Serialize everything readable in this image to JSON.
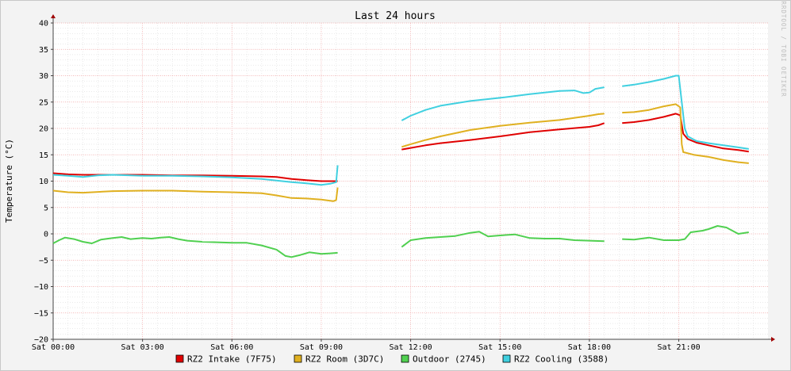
{
  "chart_data": {
    "type": "line",
    "title": "Last 24 hours",
    "ylabel": "Temperature (°C)",
    "watermark": "RRDTOOL / TOBI OETIKER",
    "ylim": [
      -20,
      40
    ],
    "y_ticks": [
      -20,
      -15,
      -10,
      -5,
      0,
      5,
      10,
      15,
      20,
      25,
      30,
      35,
      40
    ],
    "y_tick_labels": [
      "−20",
      "−15",
      "−10",
      "−5",
      "0",
      "5",
      "10",
      "15",
      "20",
      "25",
      "30",
      "35",
      "40"
    ],
    "xlim": [
      0,
      23.5
    ],
    "x_ticks": [
      0,
      3,
      6,
      9,
      12,
      15,
      18,
      21
    ],
    "x_tick_labels": [
      "Sat 00:00",
      "Sat 03:00",
      "Sat 06:00",
      "Sat 09:00",
      "Sat 12:00",
      "Sat 15:00",
      "Sat 18:00",
      "Sat 21:00"
    ],
    "grid": true,
    "legend_position": "bottom",
    "series": [
      {
        "name": "RZ2 Intake (7F75)",
        "color": "#e00000",
        "segments": [
          [
            [
              0,
              11.5
            ],
            [
              0.5,
              11.3
            ],
            [
              1,
              11.2
            ],
            [
              2,
              11.2
            ],
            [
              3,
              11.2
            ],
            [
              4,
              11.1
            ],
            [
              5,
              11.1
            ],
            [
              6,
              11
            ],
            [
              7,
              10.9
            ],
            [
              7.5,
              10.8
            ],
            [
              8,
              10.4
            ],
            [
              8.5,
              10.2
            ],
            [
              9,
              10
            ],
            [
              9.5,
              10
            ],
            [
              9.55,
              10
            ]
          ],
          [
            [
              11.7,
              16
            ],
            [
              12,
              16.3
            ],
            [
              12.5,
              16.8
            ],
            [
              13,
              17.2
            ],
            [
              14,
              17.8
            ],
            [
              15,
              18.5
            ],
            [
              16,
              19.3
            ],
            [
              17,
              19.8
            ],
            [
              18,
              20.3
            ],
            [
              18.3,
              20.6
            ],
            [
              18.5,
              21
            ]
          ],
          [
            [
              19.1,
              21
            ],
            [
              19.5,
              21.2
            ],
            [
              20,
              21.6
            ],
            [
              20.5,
              22.2
            ],
            [
              20.9,
              22.8
            ],
            [
              21.05,
              22.5
            ],
            [
              21.15,
              19
            ],
            [
              21.3,
              18
            ],
            [
              21.6,
              17.3
            ],
            [
              22,
              16.8
            ],
            [
              22.5,
              16.2
            ],
            [
              23,
              15.9
            ],
            [
              23.35,
              15.6
            ]
          ]
        ]
      },
      {
        "name": "RZ2 Room (3D7C)",
        "color": "#e0b020",
        "segments": [
          [
            [
              0,
              8.2
            ],
            [
              0.5,
              7.9
            ],
            [
              1,
              7.8
            ],
            [
              2,
              8.1
            ],
            [
              3,
              8.2
            ],
            [
              4,
              8.2
            ],
            [
              5,
              8
            ],
            [
              6,
              7.9
            ],
            [
              7,
              7.7
            ],
            [
              7.5,
              7.3
            ],
            [
              8,
              6.8
            ],
            [
              8.5,
              6.7
            ],
            [
              9,
              6.5
            ],
            [
              9.4,
              6.2
            ],
            [
              9.5,
              6.4
            ],
            [
              9.55,
              8.8
            ]
          ],
          [
            [
              11.7,
              16.5
            ],
            [
              12,
              17
            ],
            [
              12.5,
              17.8
            ],
            [
              13,
              18.5
            ],
            [
              14,
              19.7
            ],
            [
              15,
              20.5
            ],
            [
              16,
              21.1
            ],
            [
              17,
              21.6
            ],
            [
              18,
              22.4
            ],
            [
              18.3,
              22.7
            ],
            [
              18.5,
              22.8
            ]
          ],
          [
            [
              19.1,
              23
            ],
            [
              19.5,
              23.1
            ],
            [
              20,
              23.5
            ],
            [
              20.5,
              24.2
            ],
            [
              20.9,
              24.6
            ],
            [
              21.05,
              24
            ],
            [
              21.1,
              17
            ],
            [
              21.15,
              15.5
            ],
            [
              21.5,
              15
            ],
            [
              22,
              14.6
            ],
            [
              22.5,
              14
            ],
            [
              23,
              13.6
            ],
            [
              23.35,
              13.4
            ]
          ]
        ]
      },
      {
        "name": "Outdoor (2745)",
        "color": "#50d050",
        "segments": [
          [
            [
              0,
              -1.8
            ],
            [
              0.2,
              -1.2
            ],
            [
              0.4,
              -0.7
            ],
            [
              0.7,
              -1
            ],
            [
              1,
              -1.5
            ],
            [
              1.3,
              -1.8
            ],
            [
              1.6,
              -1.1
            ],
            [
              2,
              -0.8
            ],
            [
              2.3,
              -0.6
            ],
            [
              2.6,
              -1
            ],
            [
              3,
              -0.8
            ],
            [
              3.3,
              -0.9
            ],
            [
              3.6,
              -0.7
            ],
            [
              3.9,
              -0.6
            ],
            [
              4.2,
              -1
            ],
            [
              4.5,
              -1.3
            ],
            [
              5,
              -1.5
            ],
            [
              5.5,
              -1.6
            ],
            [
              6,
              -1.7
            ],
            [
              6.5,
              -1.7
            ],
            [
              7,
              -2.2
            ],
            [
              7.5,
              -3
            ],
            [
              7.8,
              -4.2
            ],
            [
              8,
              -4.4
            ],
            [
              8.3,
              -4
            ],
            [
              8.6,
              -3.5
            ],
            [
              9,
              -3.8
            ],
            [
              9.3,
              -3.7
            ],
            [
              9.55,
              -3.6
            ]
          ],
          [
            [
              11.7,
              -2.5
            ],
            [
              12,
              -1.2
            ],
            [
              12.5,
              -0.8
            ],
            [
              13,
              -0.6
            ],
            [
              13.5,
              -0.4
            ],
            [
              14,
              0.2
            ],
            [
              14.3,
              0.4
            ],
            [
              14.6,
              -0.5
            ],
            [
              15,
              -0.3
            ],
            [
              15.5,
              -0.1
            ],
            [
              16,
              -0.8
            ],
            [
              16.5,
              -0.9
            ],
            [
              17,
              -0.9
            ],
            [
              17.5,
              -1.2
            ],
            [
              18,
              -1.3
            ],
            [
              18.5,
              -1.4
            ]
          ],
          [
            [
              19.1,
              -1
            ],
            [
              19.5,
              -1.1
            ],
            [
              20,
              -0.7
            ],
            [
              20.5,
              -1.2
            ],
            [
              21,
              -1.2
            ],
            [
              21.2,
              -1
            ],
            [
              21.4,
              0.3
            ],
            [
              21.8,
              0.6
            ],
            [
              22,
              0.9
            ],
            [
              22.3,
              1.5
            ],
            [
              22.6,
              1.2
            ],
            [
              23,
              0
            ],
            [
              23.35,
              0.3
            ]
          ]
        ]
      },
      {
        "name": "RZ2 Cooling (3588)",
        "color": "#40d0e0",
        "segments": [
          [
            [
              0,
              11.2
            ],
            [
              0.5,
              11
            ],
            [
              1,
              10.8
            ],
            [
              1.5,
              11.1
            ],
            [
              2,
              11.2
            ],
            [
              3,
              11
            ],
            [
              4,
              11
            ],
            [
              5,
              10.9
            ],
            [
              6,
              10.7
            ],
            [
              7,
              10.4
            ],
            [
              7.5,
              10.1
            ],
            [
              8,
              9.8
            ],
            [
              8.5,
              9.6
            ],
            [
              9,
              9.3
            ],
            [
              9.3,
              9.5
            ],
            [
              9.5,
              9.8
            ],
            [
              9.55,
              13
            ]
          ],
          [
            [
              11.7,
              21.5
            ],
            [
              12,
              22.4
            ],
            [
              12.5,
              23.5
            ],
            [
              13,
              24.3
            ],
            [
              14,
              25.2
            ],
            [
              15,
              25.8
            ],
            [
              16,
              26.5
            ],
            [
              17,
              27.1
            ],
            [
              17.5,
              27.2
            ],
            [
              17.8,
              26.7
            ],
            [
              18,
              26.8
            ],
            [
              18.2,
              27.5
            ],
            [
              18.5,
              27.8
            ]
          ],
          [
            [
              19.1,
              28
            ],
            [
              19.5,
              28.3
            ],
            [
              20,
              28.8
            ],
            [
              20.5,
              29.4
            ],
            [
              20.9,
              30
            ],
            [
              21,
              30
            ],
            [
              21.1,
              25
            ],
            [
              21.2,
              20
            ],
            [
              21.3,
              18.5
            ],
            [
              21.6,
              17.6
            ],
            [
              22,
              17.2
            ],
            [
              22.5,
              16.8
            ],
            [
              23,
              16.4
            ],
            [
              23.35,
              16.1
            ]
          ]
        ]
      }
    ]
  }
}
